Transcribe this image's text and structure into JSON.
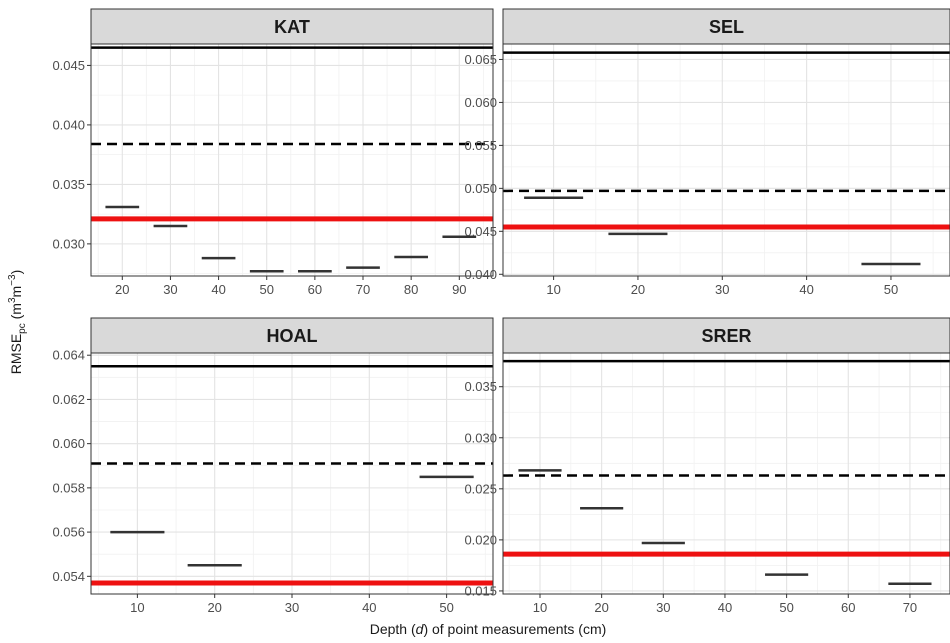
{
  "chart_data": {
    "type": "faceted-line",
    "xlabel_parts": {
      "pre": "Depth (",
      "var": "d",
      "post": ") of point measurements (cm)"
    },
    "ylabel_parts": {
      "base": "RMSE",
      "sub": "pc",
      "unit_open": " (m",
      "sup1": "3",
      "unit_mid": "m",
      "sup2": "−3",
      "unit_close": ")"
    },
    "colors": {
      "point_segments": "#333333",
      "solid_line": "#000000",
      "dashed_line": "#000000",
      "red_line": "#ee1111"
    },
    "panels": [
      {
        "name": "KAT",
        "xlim": [
          13.5,
          97
        ],
        "ylim": [
          0.0273,
          0.0468
        ],
        "x_ticks": [
          "20",
          "30",
          "40",
          "50",
          "60",
          "70",
          "80",
          "90"
        ],
        "y_ticks": [
          "0.030",
          "0.035",
          "0.040",
          "0.045"
        ],
        "solid": 0.0465,
        "dashed": 0.0384,
        "red": 0.0321,
        "points": [
          {
            "x": 20,
            "y": 0.0331
          },
          {
            "x": 30,
            "y": 0.0315
          },
          {
            "x": 40,
            "y": 0.0288
          },
          {
            "x": 50,
            "y": 0.0277
          },
          {
            "x": 60,
            "y": 0.0277
          },
          {
            "x": 70,
            "y": 0.028
          },
          {
            "x": 80,
            "y": 0.0289
          },
          {
            "x": 90,
            "y": 0.0306
          }
        ]
      },
      {
        "name": "SEL",
        "xlim": [
          4,
          57
        ],
        "ylim": [
          0.0398,
          0.0668
        ],
        "x_ticks": [
          "10",
          "20",
          "30",
          "40",
          "50"
        ],
        "y_ticks": [
          "0.040",
          "0.045",
          "0.050",
          "0.055",
          "0.060",
          "0.065"
        ],
        "solid": 0.0658,
        "dashed": 0.0497,
        "red": 0.0455,
        "points": [
          {
            "x": 10,
            "y": 0.0489
          },
          {
            "x": 20,
            "y": 0.0447
          },
          {
            "x": 50,
            "y": 0.0412
          }
        ]
      },
      {
        "name": "HOAL",
        "xlim": [
          4,
          56
        ],
        "ylim": [
          0.0532,
          0.0641
        ],
        "x_ticks": [
          "10",
          "20",
          "30",
          "40",
          "50"
        ],
        "y_ticks": [
          "0.054",
          "0.056",
          "0.058",
          "0.060",
          "0.062",
          "0.064"
        ],
        "solid": 0.0635,
        "dashed": 0.0591,
        "red": 0.0537,
        "points": [
          {
            "x": 10,
            "y": 0.056
          },
          {
            "x": 20,
            "y": 0.0545
          },
          {
            "x": 50,
            "y": 0.0585
          }
        ]
      },
      {
        "name": "SRER",
        "xlim": [
          4,
          76.5
        ],
        "ylim": [
          0.0147,
          0.0383
        ],
        "x_ticks": [
          "10",
          "20",
          "30",
          "40",
          "50",
          "60",
          "70"
        ],
        "y_ticks": [
          "0.015",
          "0.020",
          "0.025",
          "0.030",
          "0.035"
        ],
        "solid": 0.0375,
        "dashed": 0.0263,
        "red": 0.0186,
        "points": [
          {
            "x": 10,
            "y": 0.0268
          },
          {
            "x": 20,
            "y": 0.0231
          },
          {
            "x": 30,
            "y": 0.0197
          },
          {
            "x": 50,
            "y": 0.0166
          },
          {
            "x": 70,
            "y": 0.0157
          }
        ]
      }
    ]
  }
}
